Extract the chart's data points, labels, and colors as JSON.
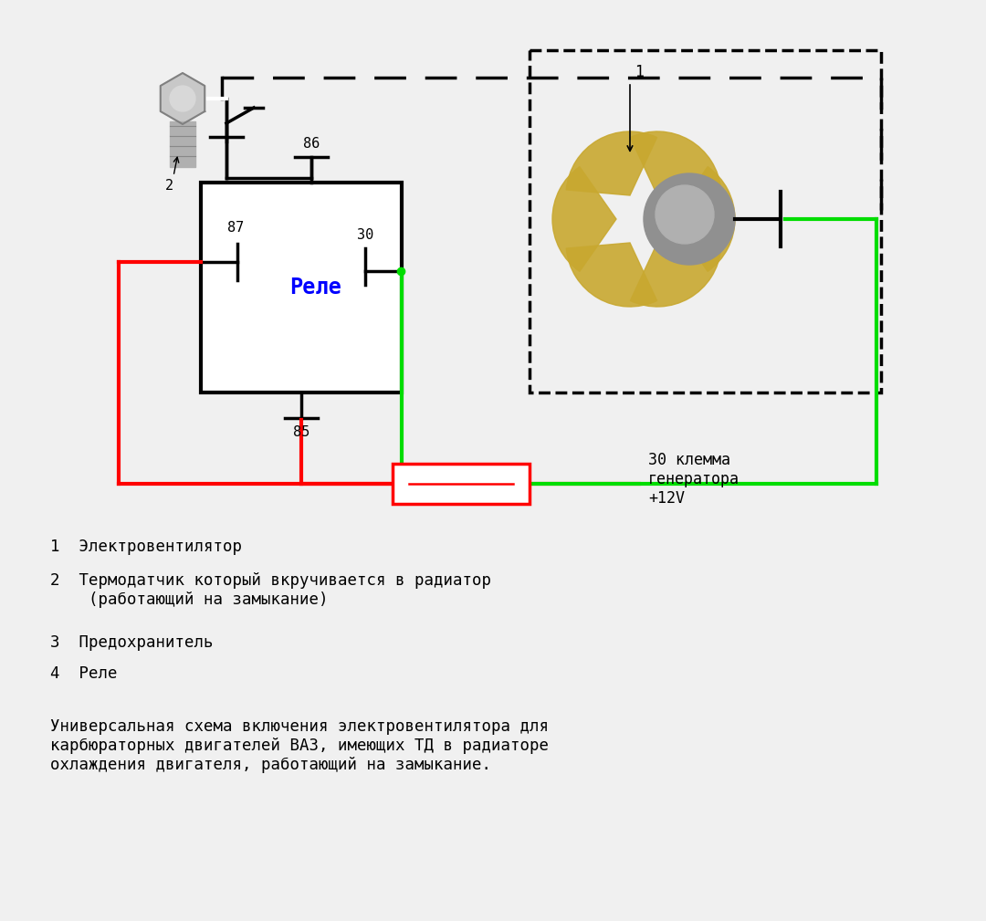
{
  "bg_color": "#f0f0f0",
  "relay_label": "Реле",
  "relay_label_color": "#0000ff",
  "wire_red": "#ff0000",
  "wire_green": "#00dd00",
  "wire_black": "#000000",
  "label1": "1  Электровентилятор",
  "label2": "2  Термодатчик который вкручивается в радиатор\n    (работающий на замыкание)",
  "label3": "3  Предохранитель",
  "label4": "4  Реле",
  "footer": "Универсальная схема включения электровентилятора для\nкарбюраторных двигателей ВАЗ, имеющих ТД в радиаторе\nохлаждения двигателя, работающий на замыкание.",
  "label_30_klema": "30 клемма\nгенератора\n+12V"
}
